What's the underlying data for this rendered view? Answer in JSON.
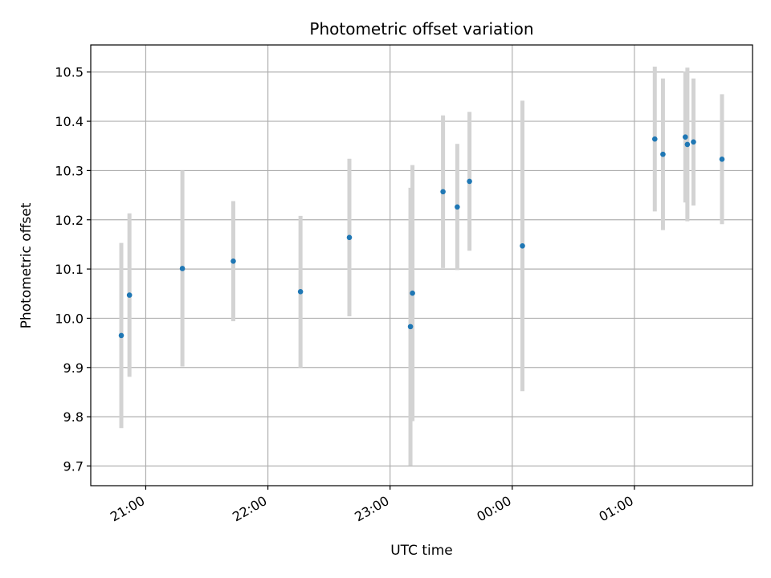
{
  "chart_data": {
    "type": "scatter",
    "title": "Photometric offset variation",
    "xlabel": "UTC time",
    "ylabel": "Photometric offset",
    "x_is_time": true,
    "xlim": [
      "20:33",
      "25:58"
    ],
    "ylim": [
      9.66,
      10.555
    ],
    "grid": true,
    "x_ticks": [
      {
        "time": "21:00",
        "label": "21:00"
      },
      {
        "time": "22:00",
        "label": "22:00"
      },
      {
        "time": "23:00",
        "label": "23:00"
      },
      {
        "time": "24:00",
        "label": "00:00"
      },
      {
        "time": "25:00",
        "label": "01:00"
      }
    ],
    "y_ticks": [
      {
        "value": 9.7,
        "label": "9.7"
      },
      {
        "value": 9.8,
        "label": "9.8"
      },
      {
        "value": 9.9,
        "label": "9.9"
      },
      {
        "value": 10.0,
        "label": "10.0"
      },
      {
        "value": 10.1,
        "label": "10.1"
      },
      {
        "value": 10.2,
        "label": "10.2"
      },
      {
        "value": 10.3,
        "label": "10.3"
      },
      {
        "value": 10.4,
        "label": "10.4"
      },
      {
        "value": 10.5,
        "label": "10.5"
      }
    ],
    "points_color": "#1f77b4",
    "errorbar_color": "#d3d3d3",
    "points": [
      {
        "time": "20:48",
        "y": 9.965,
        "err": 0.188
      },
      {
        "time": "20:52",
        "y": 10.047,
        "err": 0.166
      },
      {
        "time": "21:18",
        "y": 10.101,
        "err": 0.199
      },
      {
        "time": "21:43",
        "y": 10.116,
        "err": 0.122
      },
      {
        "time": "22:16",
        "y": 10.054,
        "err": 0.154
      },
      {
        "time": "22:40",
        "y": 10.164,
        "err": 0.16
      },
      {
        "time": "23:10",
        "y": 9.983,
        "err": 0.282
      },
      {
        "time": "23:11",
        "y": 10.051,
        "err": 0.26
      },
      {
        "time": "23:26",
        "y": 10.257,
        "err": 0.155
      },
      {
        "time": "23:33",
        "y": 10.226,
        "err": 0.128
      },
      {
        "time": "23:39",
        "y": 10.278,
        "err": 0.141
      },
      {
        "time": "24:05",
        "y": 10.147,
        "err": 0.295
      },
      {
        "time": "25:10",
        "y": 10.364,
        "err": 0.147
      },
      {
        "time": "25:14",
        "y": 10.333,
        "err": 0.154
      },
      {
        "time": "25:25",
        "y": 10.368,
        "err": 0.133
      },
      {
        "time": "25:26",
        "y": 10.353,
        "err": 0.156
      },
      {
        "time": "25:29",
        "y": 10.358,
        "err": 0.129
      },
      {
        "time": "25:43",
        "y": 10.323,
        "err": 0.132
      }
    ]
  }
}
